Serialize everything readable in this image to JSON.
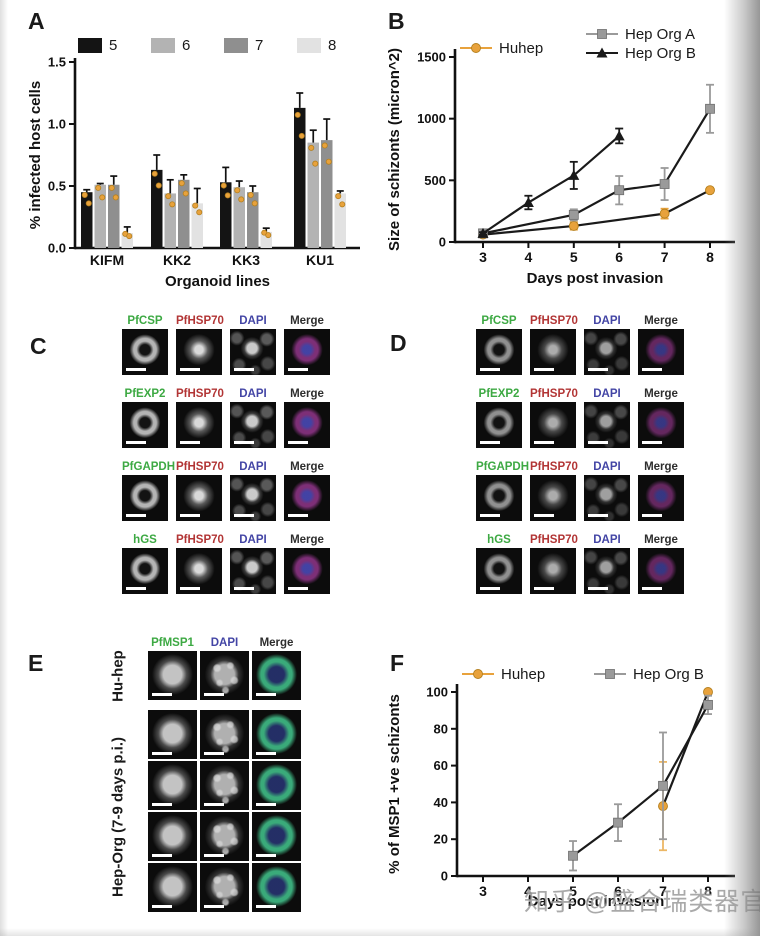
{
  "watermark": "知乎 @盛合瑞类器官",
  "panel_labels": {
    "A": "A",
    "B": "B",
    "C": "C",
    "D": "D",
    "E": "E",
    "F": "F"
  },
  "chart_data": [
    {
      "id": "A",
      "type": "bar",
      "title": "",
      "xlabel": "Organoid lines",
      "ylabel": "% infected host cells",
      "categories": [
        "KIFM",
        "KK2",
        "KK3",
        "KU1"
      ],
      "ylim": [
        0,
        1.5
      ],
      "yticks": [
        0.0,
        0.5,
        1.0,
        1.5
      ],
      "legend_position": "top",
      "point_color": "#E8A23C",
      "series": [
        {
          "name": "5",
          "color": "#141414",
          "values": [
            0.45,
            0.63,
            0.53,
            1.13
          ],
          "errors": [
            0.02,
            0.12,
            0.12,
            0.12
          ]
        },
        {
          "name": "6",
          "color": "#b3b3b3",
          "values": [
            0.51,
            0.44,
            0.49,
            0.85
          ],
          "errors": [
            0.01,
            0.11,
            0.05,
            0.1
          ]
        },
        {
          "name": "7",
          "color": "#8f8f8f",
          "values": [
            0.51,
            0.55,
            0.45,
            0.87
          ],
          "errors": [
            0.07,
            0.04,
            0.05,
            0.17
          ]
        },
        {
          "name": "8",
          "color": "#e2e2e2",
          "values": [
            0.12,
            0.36,
            0.13,
            0.44
          ],
          "errors": [
            0.05,
            0.12,
            0.03,
            0.02
          ]
        }
      ]
    },
    {
      "id": "B",
      "type": "line",
      "title": "",
      "xlabel": "Days post invasion",
      "ylabel": "Size of schizonts (micron^2)",
      "xticks": [
        3,
        4,
        5,
        6,
        7,
        8
      ],
      "yticks": [
        0,
        500,
        1000,
        1500
      ],
      "ylim": [
        0,
        1500
      ],
      "legend_position": "top",
      "series": [
        {
          "name": "Huhep",
          "marker": "circle",
          "color": "#E8A23C",
          "line_color": "#1a1a1a",
          "err_color": "#E8A23C",
          "points": [
            {
              "x": 3,
              "y": 60,
              "err": 15
            },
            {
              "x": 5,
              "y": 130,
              "err": 30
            },
            {
              "x": 7,
              "y": 230,
              "err": 40
            },
            {
              "x": 8,
              "y": 420,
              "err": 20
            }
          ]
        },
        {
          "name": "Hep Org A",
          "marker": "square",
          "color": "#9a9a9a",
          "line_color": "#1a1a1a",
          "err_color": "#9a9a9a",
          "points": [
            {
              "x": 3,
              "y": 70,
              "err": 10
            },
            {
              "x": 5,
              "y": 220,
              "err": 45
            },
            {
              "x": 6,
              "y": 420,
              "err": 115
            },
            {
              "x": 7,
              "y": 470,
              "err": 130
            },
            {
              "x": 8,
              "y": 1080,
              "err": 195
            }
          ]
        },
        {
          "name": "Hep Org B",
          "marker": "triangle",
          "color": "#1a1a1a",
          "line_color": "#1a1a1a",
          "err_color": "#1a1a1a",
          "points": [
            {
              "x": 3,
              "y": 70,
              "err": 10
            },
            {
              "x": 4,
              "y": 320,
              "err": 55
            },
            {
              "x": 5,
              "y": 540,
              "err": 110
            },
            {
              "x": 6,
              "y": 860,
              "err": 60
            }
          ]
        }
      ]
    },
    {
      "id": "F",
      "type": "line",
      "title": "",
      "xlabel": "Days post invasion",
      "ylabel": "% of MSP1 +ve schizonts",
      "xticks": [
        3,
        4,
        5,
        6,
        7,
        8
      ],
      "yticks": [
        0,
        20,
        40,
        60,
        80,
        100
      ],
      "ylim": [
        0,
        100
      ],
      "legend_position": "top",
      "series": [
        {
          "name": "Huhep",
          "marker": "circle",
          "color": "#E8A23C",
          "line_color": "#1a1a1a",
          "err_color": "#ECB765",
          "points": [
            {
              "x": 7,
              "y": 38,
              "err": 24
            },
            {
              "x": 8,
              "y": 100,
              "err": 2
            }
          ]
        },
        {
          "name": "Hep Org B",
          "marker": "square",
          "color": "#9a9a9a",
          "line_color": "#1a1a1a",
          "err_color": "#9a9a9a",
          "points": [
            {
              "x": 5,
              "y": 11,
              "err": 8
            },
            {
              "x": 6,
              "y": 29,
              "err": 10
            },
            {
              "x": 7,
              "y": 49,
              "err": 29
            },
            {
              "x": 8,
              "y": 93,
              "err": 5
            }
          ]
        }
      ]
    }
  ],
  "microscopy": {
    "C": {
      "rows": [
        {
          "headers": [
            {
              "t": "PfCSP",
              "c": "#3DA943"
            },
            {
              "t": "PfHSP70",
              "c": "#B23535"
            },
            {
              "t": "DAPI",
              "c": "#4345A5"
            },
            {
              "t": "Merge",
              "c": "#2e2e2e"
            }
          ]
        },
        {
          "headers": [
            {
              "t": "PfEXP2",
              "c": "#3DA943"
            },
            {
              "t": "PfHSP70",
              "c": "#B23535"
            },
            {
              "t": "DAPI",
              "c": "#4345A5"
            },
            {
              "t": "Merge",
              "c": "#2e2e2e"
            }
          ]
        },
        {
          "headers": [
            {
              "t": "PfGAPDH",
              "c": "#3DA943"
            },
            {
              "t": "PfHSP70",
              "c": "#B23535"
            },
            {
              "t": "DAPI",
              "c": "#4345A5"
            },
            {
              "t": "Merge",
              "c": "#2e2e2e"
            }
          ]
        },
        {
          "headers": [
            {
              "t": "hGS",
              "c": "#3DA943"
            },
            {
              "t": "PfHSP70",
              "c": "#B23535"
            },
            {
              "t": "DAPI",
              "c": "#4345A5"
            },
            {
              "t": "Merge",
              "c": "#2e2e2e"
            }
          ]
        }
      ]
    },
    "D": {
      "rows": [
        {
          "headers": [
            {
              "t": "PfCSP",
              "c": "#3DA943"
            },
            {
              "t": "PfHSP70",
              "c": "#B23535"
            },
            {
              "t": "DAPI",
              "c": "#4345A5"
            },
            {
              "t": "Merge",
              "c": "#2e2e2e"
            }
          ]
        },
        {
          "headers": [
            {
              "t": "PfEXP2",
              "c": "#3DA943"
            },
            {
              "t": "PfHSP70",
              "c": "#B23535"
            },
            {
              "t": "DAPI",
              "c": "#4345A5"
            },
            {
              "t": "Merge",
              "c": "#2e2e2e"
            }
          ]
        },
        {
          "headers": [
            {
              "t": "PfGAPDH",
              "c": "#3DA943"
            },
            {
              "t": "PfHSP70",
              "c": "#B23535"
            },
            {
              "t": "DAPI",
              "c": "#4345A5"
            },
            {
              "t": "Merge",
              "c": "#2e2e2e"
            }
          ]
        },
        {
          "headers": [
            {
              "t": "hGS",
              "c": "#3DA943"
            },
            {
              "t": "PfHSP70",
              "c": "#B23535"
            },
            {
              "t": "DAPI",
              "c": "#4345A5"
            },
            {
              "t": "Merge",
              "c": "#2e2e2e"
            }
          ]
        }
      ]
    },
    "E": {
      "col_headers": [
        {
          "t": "PfMSP1",
          "c": "#3DA943"
        },
        {
          "t": "DAPI",
          "c": "#4345A5"
        },
        {
          "t": "Merge",
          "c": "#2e2e2e"
        }
      ],
      "row_labels": [
        {
          "text": "Hu-hep"
        },
        {
          "text": "Hep-Org (7-9 days p.i.)"
        }
      ],
      "num_rows": 5
    }
  }
}
